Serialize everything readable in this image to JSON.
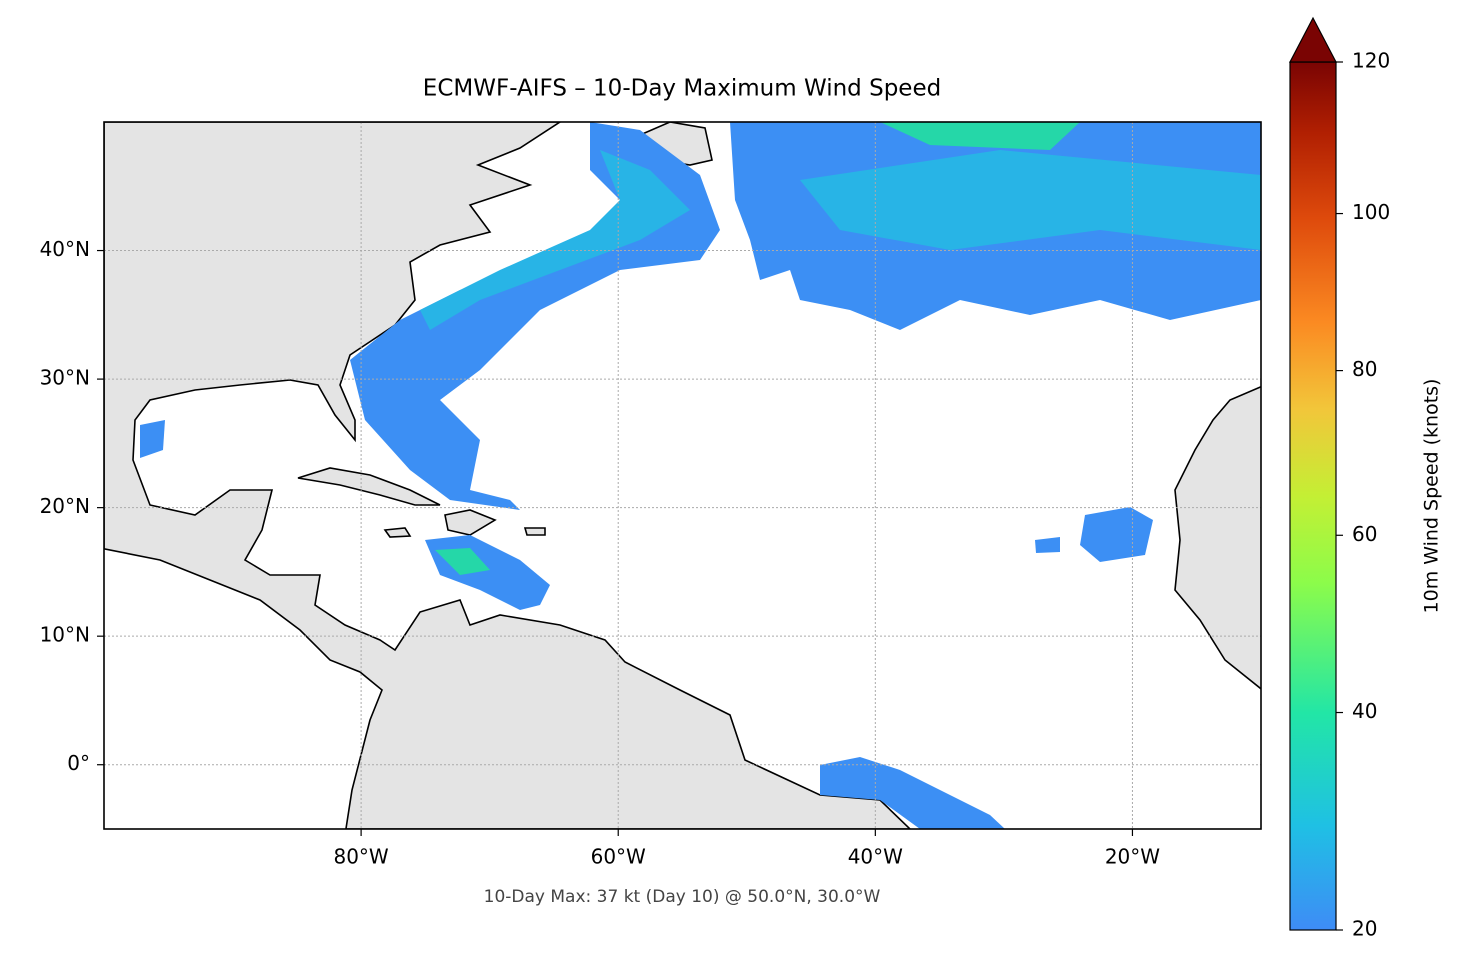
{
  "title": "ECMWF-AIFS – 10-Day Maximum Wind Speed",
  "footnote": "10-Day Max: 37 kt (Day 10) @ 50.0°N, 30.0°W",
  "map": {
    "xlim": [
      -100,
      -10
    ],
    "ylim": [
      -5,
      50
    ],
    "grid": true,
    "xticks": [
      {
        "value": -80,
        "label": "80°W"
      },
      {
        "value": -60,
        "label": "60°W"
      },
      {
        "value": -40,
        "label": "40°W"
      },
      {
        "value": -20,
        "label": "20°W"
      }
    ],
    "yticks": [
      {
        "value": 0,
        "label": "0°"
      },
      {
        "value": 10,
        "label": "10°N"
      },
      {
        "value": 20,
        "label": "20°N"
      },
      {
        "value": 30,
        "label": "30°N"
      },
      {
        "value": 40,
        "label": "40°N"
      }
    ]
  },
  "colorbar": {
    "label": "10m Wind Speed (knots)",
    "range": [
      20,
      120
    ],
    "ticks": [
      20,
      40,
      60,
      80,
      100,
      120
    ],
    "gamma": 0.86,
    "extend": "max"
  }
}
